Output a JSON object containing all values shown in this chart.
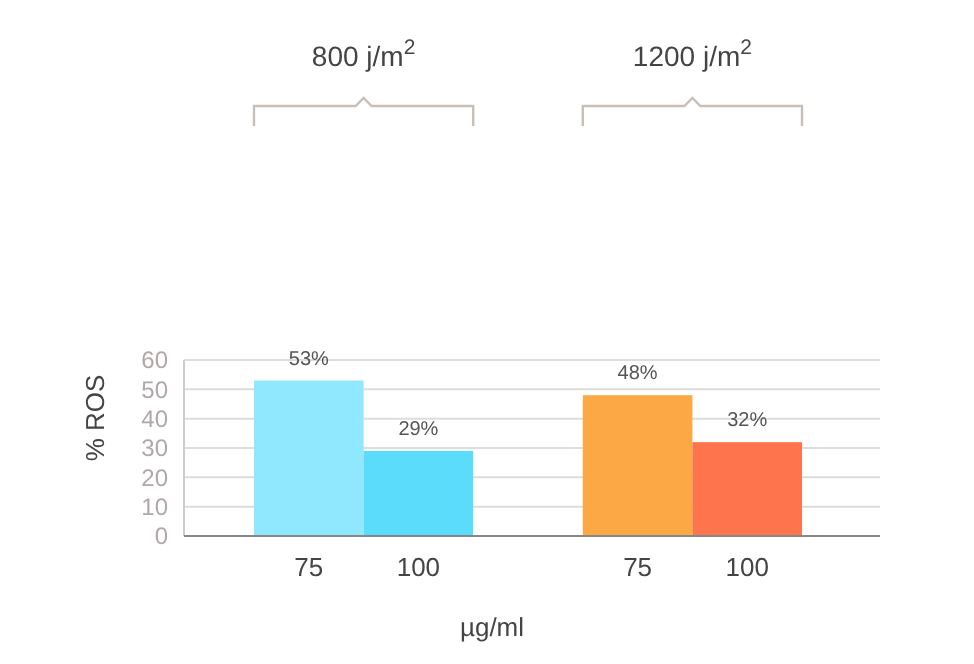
{
  "chart_data": {
    "type": "bar",
    "categories": [
      "75",
      "100",
      null,
      "75",
      "100"
    ],
    "values": [
      53,
      29,
      null,
      48,
      32
    ],
    "colors": [
      "#8fe8fd",
      "#5cdcfb",
      null,
      "#fca844",
      "#fd744d"
    ],
    "value_labels": [
      "53%",
      "29%",
      null,
      "48%",
      "32%"
    ],
    "annotations": [
      "800 j/m$^{2}$",
      "1200 j/m$^{2}$"
    ],
    "ylabel": "% ROS",
    "xlabel": "µg/ml",
    "ylim": [
      0,
      60
    ],
    "yticks": [
      0,
      10,
      20,
      30,
      40,
      50,
      60
    ],
    "grid": "y"
  }
}
